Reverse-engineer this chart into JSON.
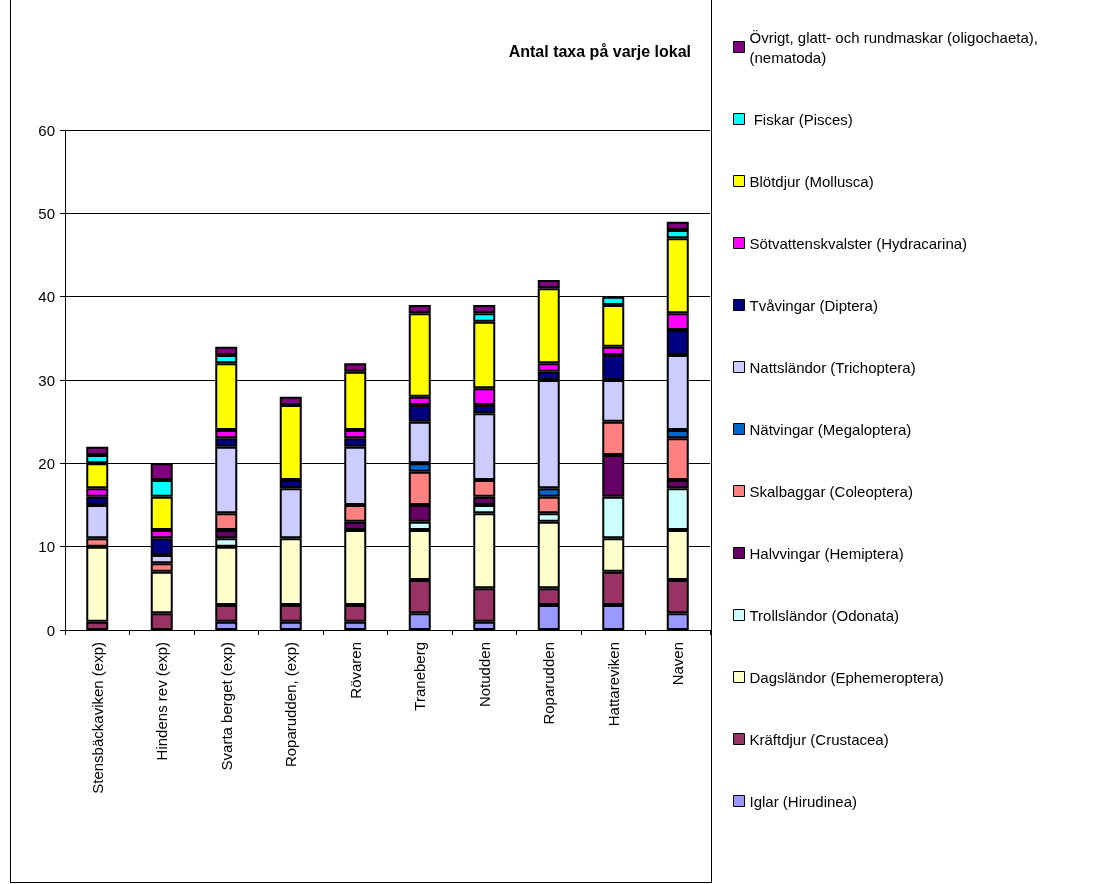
{
  "chart_data": {
    "type": "bar",
    "title": "Antal taxa på varje lokal",
    "stacked": true,
    "categories": [
      "Stensbäckaviken (exp)",
      "Hindens rev (exp)",
      "Svarta berget (exp)",
      "Roparudden, (exp)",
      "Rövaren",
      "Traneberg",
      "Notudden",
      "Roparudden",
      "Hattareviken",
      "Naven"
    ],
    "ylim": [
      0,
      60
    ],
    "yticks": [
      0,
      10,
      20,
      30,
      40,
      50,
      60
    ],
    "grid": "y",
    "legend": "right",
    "series": [
      {
        "name": "Iglar (Hirudinea)",
        "color": "#9999ff",
        "values": [
          null,
          null,
          1,
          1,
          1,
          2,
          1,
          3,
          3,
          2
        ]
      },
      {
        "name": "Kräftdjur (Crustacea)",
        "color": "#993366",
        "values": [
          1,
          2,
          2,
          2,
          2,
          4,
          4,
          2,
          4,
          4
        ]
      },
      {
        "name": "Dagsländor (Ephemeroptera)",
        "color": "#ffffcc",
        "values": [
          9,
          5,
          7,
          8,
          9,
          6,
          9,
          8,
          4,
          6
        ]
      },
      {
        "name": "Trollsländor (Odonata)",
        "color": "#ccffff",
        "values": [
          null,
          null,
          1,
          null,
          null,
          1,
          1,
          1,
          5,
          5
        ]
      },
      {
        "name": "Halvvingar (Hemiptera)",
        "color": "#660066",
        "values": [
          null,
          null,
          1,
          null,
          1,
          2,
          1,
          null,
          5,
          1
        ]
      },
      {
        "name": "Skalbaggar (Coleoptera)",
        "color": "#ff8080",
        "values": [
          1,
          1,
          2,
          null,
          2,
          4,
          2,
          2,
          4,
          5
        ]
      },
      {
        "name": "Nätvingar (Megaloptera)",
        "color": "#0066cc",
        "values": [
          null,
          null,
          null,
          null,
          null,
          1,
          null,
          1,
          null,
          1
        ]
      },
      {
        "name": "Nattsländor (Trichoptera)",
        "color": "#ccccff",
        "values": [
          4,
          1,
          8,
          6,
          7,
          5,
          8,
          13,
          5,
          9
        ]
      },
      {
        "name": "Tvåvingar (Diptera)",
        "color": "#000080",
        "values": [
          1,
          2,
          1,
          1,
          1,
          2,
          1,
          1,
          3,
          3
        ]
      },
      {
        "name": "Sötvattenskvalster (Hydracarina)",
        "color": "#ff00ff",
        "values": [
          1,
          1,
          1,
          null,
          1,
          1,
          2,
          1,
          1,
          2
        ]
      },
      {
        "name": "Blötdjur (Mollusca)",
        "color": "#ffff00",
        "values": [
          3,
          4,
          8,
          9,
          7,
          10,
          8,
          9,
          5,
          9
        ]
      },
      {
        "name": " Fiskar (Pisces)",
        "color": "#00ffff",
        "values": [
          1,
          2,
          1,
          null,
          null,
          null,
          1,
          null,
          1,
          1
        ]
      },
      {
        "name": "Övrigt, glatt- och rundmaskar (oligochaeta), (nematoda)",
        "color": "#800080",
        "values": [
          1,
          2,
          1,
          1,
          1,
          1,
          1,
          1,
          null,
          1
        ]
      }
    ]
  }
}
